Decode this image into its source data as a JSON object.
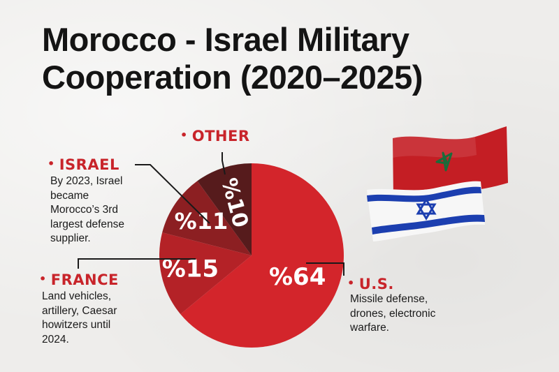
{
  "title": {
    "line1": "Morocco - Israel Military",
    "line2": "Cooperation (2020–2025)"
  },
  "chart_data": {
    "type": "pie",
    "slices": [
      {
        "name": "U.S.",
        "value": 64,
        "label": "%64",
        "color": "#d3252b",
        "description": [
          "Missile defense,",
          "drones, electronic",
          "warfare."
        ]
      },
      {
        "name": "FRANCE",
        "value": 15,
        "label": "%15",
        "color": "#b42227",
        "description": [
          "Land vehicles,",
          "artillery, Caesar",
          "howitzers until",
          "2024."
        ]
      },
      {
        "name": "ISRAEL",
        "value": 11,
        "label": "%11",
        "color": "#8c1f22",
        "description": [
          "By 2023, Israel",
          "became",
          "Morocco’s 3rd",
          "largest defense",
          "supplier."
        ]
      },
      {
        "name": "OTHER",
        "value": 10,
        "label": "%10",
        "color": "#561b1c",
        "description": []
      }
    ]
  },
  "colors": {
    "accent": "#c8242a",
    "morocco_flag_red": "#c41e24",
    "morocco_star_green": "#1b6b3a",
    "israel_flag_blue": "#1c3fb0"
  },
  "icons": [
    "morocco-flag-icon",
    "israel-flag-icon"
  ]
}
